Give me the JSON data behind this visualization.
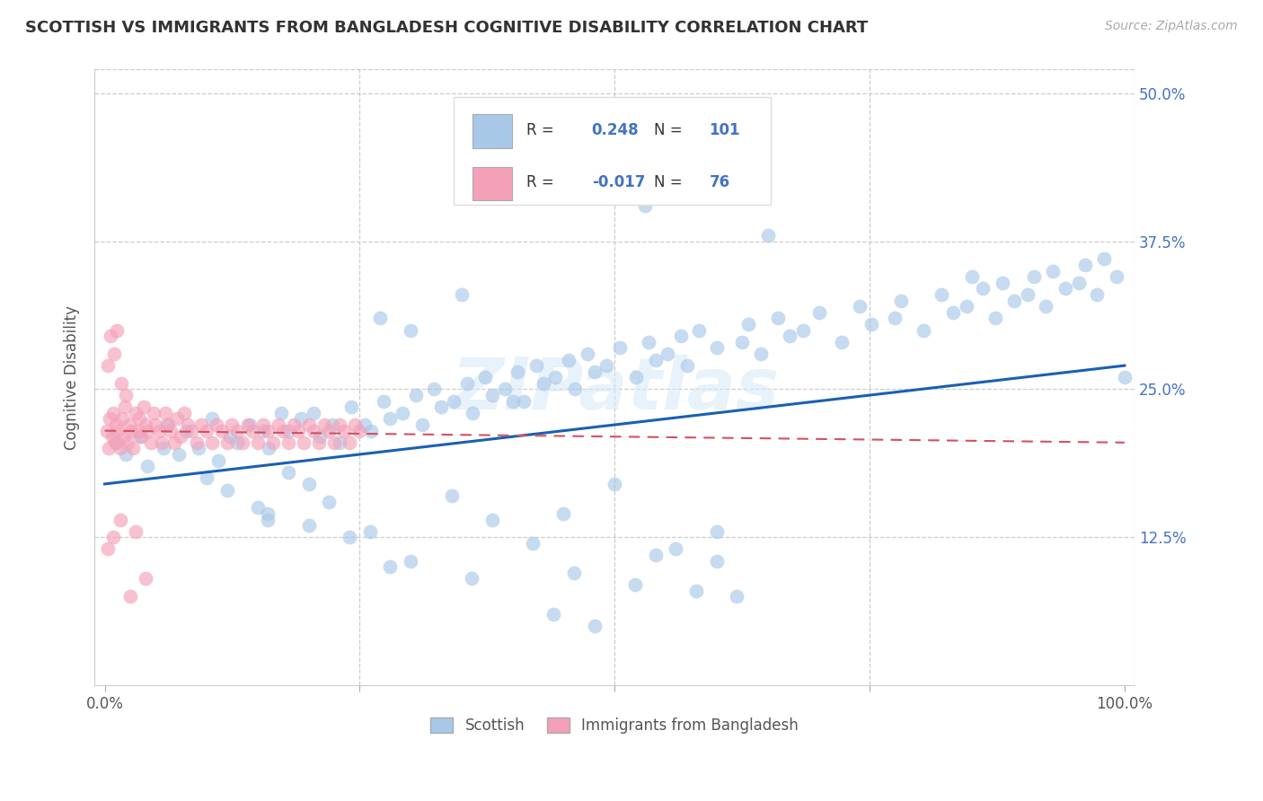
{
  "title": "SCOTTISH VS IMMIGRANTS FROM BANGLADESH COGNITIVE DISABILITY CORRELATION CHART",
  "source": "Source: ZipAtlas.com",
  "ylabel": "Cognitive Disability",
  "watermark": "ZIPatlas",
  "scottish_R": 0.248,
  "scottish_N": 101,
  "bangladesh_R": -0.017,
  "bangladesh_N": 76,
  "scottish_color": "#a8c8e8",
  "bangladesh_color": "#f4a0b8",
  "scottish_line_color": "#1a5fb4",
  "bangladesh_line_color": "#d45060",
  "sc_x": [
    1.2,
    2.1,
    3.5,
    4.2,
    5.8,
    6.1,
    7.3,
    8.0,
    9.2,
    10.5,
    11.1,
    12.3,
    13.0,
    14.2,
    15.5,
    16.1,
    17.3,
    18.0,
    19.2,
    20.5,
    21.1,
    22.3,
    23.0,
    24.2,
    25.5,
    26.1,
    27.3,
    28.0,
    29.2,
    30.5,
    31.1,
    32.3,
    33.0,
    34.2,
    35.5,
    36.1,
    37.3,
    38.0,
    39.2,
    40.5,
    41.1,
    42.3,
    43.0,
    44.2,
    45.5,
    46.1,
    47.3,
    48.0,
    49.2,
    50.5,
    52.1,
    53.3,
    54.0,
    55.2,
    56.5,
    57.1,
    58.3,
    60.0,
    62.5,
    63.1,
    64.3,
    66.0,
    67.2,
    68.5,
    70.1,
    72.3,
    74.0,
    75.2,
    77.5,
    78.1,
    80.3,
    82.0,
    83.2,
    84.5,
    86.1,
    87.3,
    88.0,
    89.2,
    90.5,
    91.1,
    92.3,
    93.0,
    94.2,
    95.5,
    96.1,
    97.3,
    98.0,
    99.2,
    100.0,
    35.0,
    50.0,
    53.0,
    27.0,
    65.0,
    85.0,
    30.0,
    40.0,
    20.0,
    16.0,
    45.0,
    60.0
  ],
  "sc_y": [
    20.5,
    19.5,
    21.0,
    18.5,
    20.0,
    22.0,
    19.5,
    21.5,
    20.0,
    22.5,
    19.0,
    21.0,
    20.5,
    22.0,
    21.5,
    20.0,
    23.0,
    21.5,
    22.5,
    23.0,
    21.0,
    22.0,
    20.5,
    23.5,
    22.0,
    21.5,
    24.0,
    22.5,
    23.0,
    24.5,
    22.0,
    25.0,
    23.5,
    24.0,
    25.5,
    23.0,
    26.0,
    24.5,
    25.0,
    26.5,
    24.0,
    27.0,
    25.5,
    26.0,
    27.5,
    25.0,
    28.0,
    26.5,
    27.0,
    28.5,
    26.0,
    29.0,
    27.5,
    28.0,
    29.5,
    27.0,
    30.0,
    28.5,
    29.0,
    30.5,
    28.0,
    31.0,
    29.5,
    30.0,
    31.5,
    29.0,
    32.0,
    30.5,
    31.0,
    32.5,
    30.0,
    33.0,
    31.5,
    32.0,
    33.5,
    31.0,
    34.0,
    32.5,
    33.0,
    34.5,
    32.0,
    35.0,
    33.5,
    34.0,
    35.5,
    33.0,
    36.0,
    34.5,
    26.0,
    33.0,
    42.0,
    40.5,
    31.0,
    38.0,
    34.5,
    30.0,
    24.0,
    17.0,
    14.0,
    14.5,
    10.5
  ],
  "sc_y_low": [
    18.0,
    15.5,
    13.0,
    10.5,
    16.0,
    14.0,
    12.0,
    9.5,
    17.0,
    11.0,
    8.0,
    15.0,
    13.5,
    7.5,
    16.5,
    14.5,
    12.5,
    10.0,
    17.5,
    9.0,
    6.0,
    5.0,
    8.5,
    11.5,
    13.0
  ],
  "sc_x_low": [
    18.0,
    22.0,
    26.0,
    30.0,
    34.0,
    38.0,
    42.0,
    46.0,
    50.0,
    54.0,
    58.0,
    15.0,
    20.0,
    62.0,
    12.0,
    16.0,
    24.0,
    28.0,
    10.0,
    36.0,
    44.0,
    48.0,
    52.0,
    56.0,
    60.0
  ],
  "bd_x": [
    0.2,
    0.4,
    0.5,
    0.7,
    0.8,
    1.0,
    1.1,
    1.3,
    1.5,
    1.7,
    1.9,
    2.0,
    2.2,
    2.4,
    2.6,
    2.8,
    3.0,
    3.2,
    3.4,
    3.6,
    3.8,
    4.0,
    4.2,
    4.5,
    4.8,
    5.0,
    5.3,
    5.6,
    5.9,
    6.2,
    6.5,
    6.8,
    7.1,
    7.4,
    7.8,
    8.1,
    8.5,
    9.0,
    9.5,
    10.0,
    10.5,
    11.0,
    11.5,
    12.0,
    12.5,
    13.0,
    13.5,
    14.0,
    14.5,
    15.0,
    15.5,
    16.0,
    16.5,
    17.0,
    17.5,
    18.0,
    18.5,
    19.0,
    19.5,
    20.0,
    20.5,
    21.0,
    21.5,
    22.0,
    22.5,
    23.0,
    23.5,
    24.0,
    24.5,
    25.0,
    0.3,
    0.6,
    0.9,
    1.2,
    1.6,
    2.1
  ],
  "bd_y": [
    21.5,
    20.0,
    22.5,
    21.0,
    23.0,
    20.5,
    22.0,
    21.5,
    20.0,
    22.5,
    21.0,
    23.5,
    20.5,
    22.0,
    21.5,
    20.0,
    23.0,
    21.5,
    22.5,
    21.0,
    23.5,
    22.0,
    21.5,
    20.5,
    23.0,
    22.0,
    21.5,
    20.5,
    23.0,
    22.0,
    21.5,
    20.5,
    22.5,
    21.0,
    23.0,
    22.0,
    21.5,
    20.5,
    22.0,
    21.5,
    20.5,
    22.0,
    21.5,
    20.5,
    22.0,
    21.5,
    20.5,
    22.0,
    21.5,
    20.5,
    22.0,
    21.5,
    20.5,
    22.0,
    21.5,
    20.5,
    22.0,
    21.5,
    20.5,
    22.0,
    21.5,
    20.5,
    22.0,
    21.5,
    20.5,
    22.0,
    21.5,
    20.5,
    22.0,
    21.5,
    27.0,
    29.5,
    28.0,
    30.0,
    25.5,
    24.5
  ],
  "bd_y_extra": [
    11.5,
    12.5,
    14.0,
    7.5,
    13.0,
    9.0
  ],
  "bd_x_extra": [
    0.3,
    0.8,
    1.5,
    2.5,
    3.0,
    4.0
  ],
  "xlim": [
    -1,
    101
  ],
  "ylim": [
    0,
    52
  ],
  "ytick_positions": [
    0,
    12.5,
    25.0,
    37.5,
    50.0
  ],
  "ytick_labels": [
    "",
    "12.5%",
    "25.0%",
    "37.5%",
    "50.0%"
  ],
  "xtick_positions": [
    0,
    25,
    50,
    75,
    100
  ],
  "xtick_labels": [
    "0.0%",
    "",
    "",
    "",
    "100.0%"
  ]
}
